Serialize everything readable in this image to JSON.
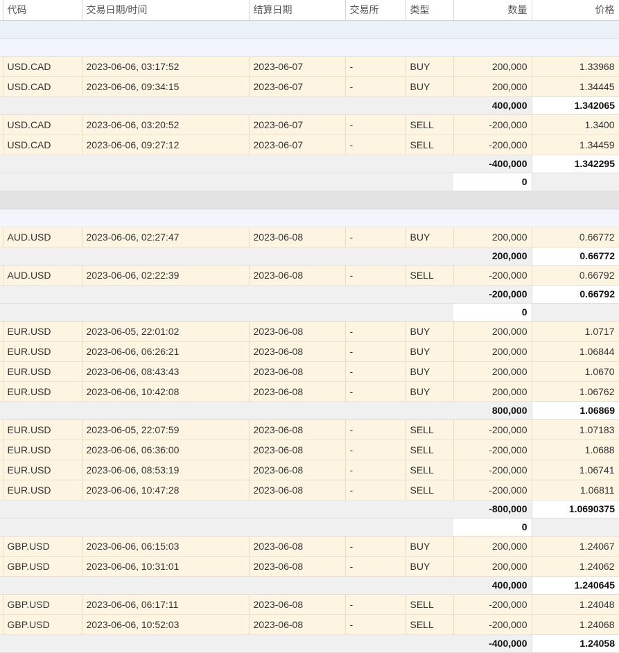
{
  "headers": {
    "symbol": "代码",
    "trade_datetime": "交易日期/时间",
    "settle_date": "结算日期",
    "exchange": "交易所",
    "type": "类型",
    "quantity": "数量",
    "price": "价格"
  },
  "rows": [
    {
      "kind": "group"
    },
    {
      "kind": "group-light"
    },
    {
      "kind": "trade",
      "symbol": "USD.CAD",
      "datetime": "2023-06-06, 03:17:52",
      "settle": "2023-06-07",
      "exchange": "-",
      "type": "BUY",
      "qty": "200,000",
      "price": "1.33968"
    },
    {
      "kind": "trade",
      "symbol": "USD.CAD",
      "datetime": "2023-06-06, 09:34:15",
      "settle": "2023-06-07",
      "exchange": "-",
      "type": "BUY",
      "qty": "200,000",
      "price": "1.34445"
    },
    {
      "kind": "subtotal",
      "qty": "400,000",
      "price": "1.342065"
    },
    {
      "kind": "trade",
      "symbol": "USD.CAD",
      "datetime": "2023-06-06, 03:20:52",
      "settle": "2023-06-07",
      "exchange": "-",
      "type": "SELL",
      "qty": "-200,000",
      "price": "1.3400"
    },
    {
      "kind": "trade",
      "symbol": "USD.CAD",
      "datetime": "2023-06-06, 09:27:12",
      "settle": "2023-06-07",
      "exchange": "-",
      "type": "SELL",
      "qty": "-200,000",
      "price": "1.34459"
    },
    {
      "kind": "subtotal",
      "qty": "-400,000",
      "price": "1.342295"
    },
    {
      "kind": "net",
      "qty": "0"
    },
    {
      "kind": "separator"
    },
    {
      "kind": "group-light"
    },
    {
      "kind": "trade",
      "symbol": "AUD.USD",
      "datetime": "2023-06-06, 02:27:47",
      "settle": "2023-06-08",
      "exchange": "-",
      "type": "BUY",
      "qty": "200,000",
      "price": "0.66772"
    },
    {
      "kind": "subtotal",
      "qty": "200,000",
      "price": "0.66772"
    },
    {
      "kind": "trade",
      "symbol": "AUD.USD",
      "datetime": "2023-06-06, 02:22:39",
      "settle": "2023-06-08",
      "exchange": "-",
      "type": "SELL",
      "qty": "-200,000",
      "price": "0.66792"
    },
    {
      "kind": "subtotal",
      "qty": "-200,000",
      "price": "0.66792"
    },
    {
      "kind": "net",
      "qty": "0"
    },
    {
      "kind": "trade",
      "symbol": "EUR.USD",
      "datetime": "2023-06-05, 22:01:02",
      "settle": "2023-06-08",
      "exchange": "-",
      "type": "BUY",
      "qty": "200,000",
      "price": "1.0717"
    },
    {
      "kind": "trade",
      "symbol": "EUR.USD",
      "datetime": "2023-06-06, 06:26:21",
      "settle": "2023-06-08",
      "exchange": "-",
      "type": "BUY",
      "qty": "200,000",
      "price": "1.06844"
    },
    {
      "kind": "trade",
      "symbol": "EUR.USD",
      "datetime": "2023-06-06, 08:43:43",
      "settle": "2023-06-08",
      "exchange": "-",
      "type": "BUY",
      "qty": "200,000",
      "price": "1.0670"
    },
    {
      "kind": "trade",
      "symbol": "EUR.USD",
      "datetime": "2023-06-06, 10:42:08",
      "settle": "2023-06-08",
      "exchange": "-",
      "type": "BUY",
      "qty": "200,000",
      "price": "1.06762"
    },
    {
      "kind": "subtotal",
      "qty": "800,000",
      "price": "1.06869"
    },
    {
      "kind": "trade",
      "symbol": "EUR.USD",
      "datetime": "2023-06-05, 22:07:59",
      "settle": "2023-06-08",
      "exchange": "-",
      "type": "SELL",
      "qty": "-200,000",
      "price": "1.07183"
    },
    {
      "kind": "trade",
      "symbol": "EUR.USD",
      "datetime": "2023-06-06, 06:36:00",
      "settle": "2023-06-08",
      "exchange": "-",
      "type": "SELL",
      "qty": "-200,000",
      "price": "1.0688"
    },
    {
      "kind": "trade",
      "symbol": "EUR.USD",
      "datetime": "2023-06-06, 08:53:19",
      "settle": "2023-06-08",
      "exchange": "-",
      "type": "SELL",
      "qty": "-200,000",
      "price": "1.06741"
    },
    {
      "kind": "trade",
      "symbol": "EUR.USD",
      "datetime": "2023-06-06, 10:47:28",
      "settle": "2023-06-08",
      "exchange": "-",
      "type": "SELL",
      "qty": "-200,000",
      "price": "1.06811"
    },
    {
      "kind": "subtotal",
      "qty": "-800,000",
      "price": "1.0690375"
    },
    {
      "kind": "net",
      "qty": "0"
    },
    {
      "kind": "trade",
      "symbol": "GBP.USD",
      "datetime": "2023-06-06, 06:15:03",
      "settle": "2023-06-08",
      "exchange": "-",
      "type": "BUY",
      "qty": "200,000",
      "price": "1.24067"
    },
    {
      "kind": "trade",
      "symbol": "GBP.USD",
      "datetime": "2023-06-06, 10:31:01",
      "settle": "2023-06-08",
      "exchange": "-",
      "type": "BUY",
      "qty": "200,000",
      "price": "1.24062"
    },
    {
      "kind": "subtotal",
      "qty": "400,000",
      "price": "1.240645"
    },
    {
      "kind": "trade",
      "symbol": "GBP.USD",
      "datetime": "2023-06-06, 06:17:11",
      "settle": "2023-06-08",
      "exchange": "-",
      "type": "SELL",
      "qty": "-200,000",
      "price": "1.24048"
    },
    {
      "kind": "trade",
      "symbol": "GBP.USD",
      "datetime": "2023-06-06, 10:52:03",
      "settle": "2023-06-08",
      "exchange": "-",
      "type": "SELL",
      "qty": "-200,000",
      "price": "1.24068"
    },
    {
      "kind": "subtotal",
      "qty": "-400,000",
      "price": "1.24058"
    }
  ]
}
